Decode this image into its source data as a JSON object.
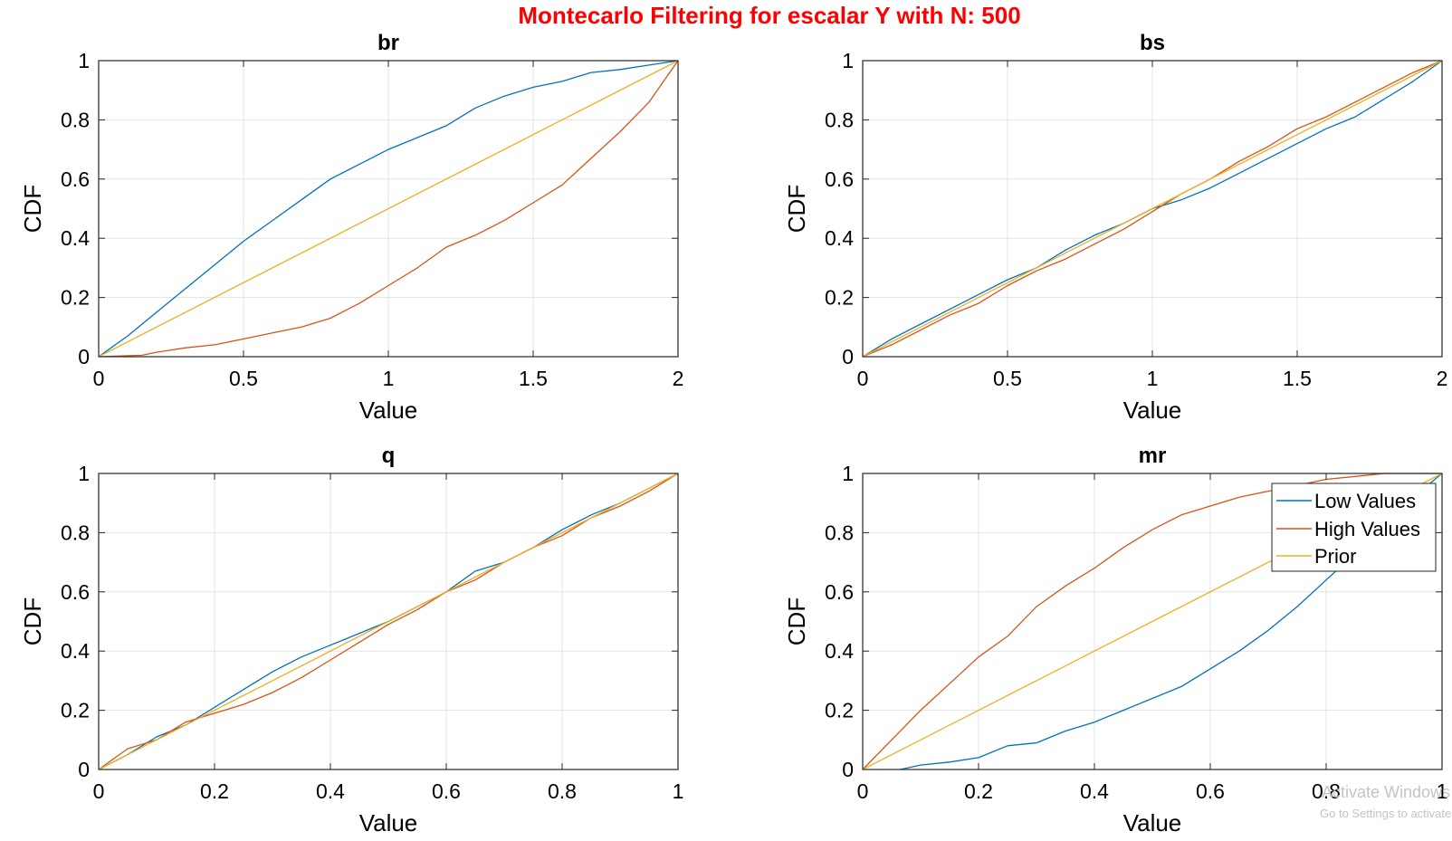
{
  "figure": {
    "title": "Montecarlo Filtering for escalar Y with N: 500",
    "title_color": "#ff0000"
  },
  "colors": {
    "low": "#0072bd",
    "high": "#d95319",
    "prior": "#edb120",
    "grid": "#e3e3e3"
  },
  "legend": {
    "entries": [
      "Low Values",
      "High Values",
      "Prior"
    ],
    "placement": "top-right of mr panel"
  },
  "watermark": {
    "line1": "Activate Windows",
    "line2": "Go to Settings to activate Windows."
  },
  "chart_data": [
    {
      "type": "line",
      "title": "br",
      "xlabel": "Value",
      "ylabel": "CDF",
      "xlim": [
        0,
        2
      ],
      "ylim": [
        0,
        1
      ],
      "xticks": [
        0,
        0.5,
        1,
        1.5,
        2
      ],
      "xticklabels": [
        "0",
        "0.5",
        "1",
        "1.5",
        "2"
      ],
      "yticks": [
        0,
        0.2,
        0.4,
        0.6,
        0.8,
        1
      ],
      "yticklabels": [
        "0",
        "0.2",
        "0.4",
        "0.6",
        "0.8",
        "1"
      ],
      "grid": true,
      "series": [
        {
          "name": "Low Values",
          "x": [
            0,
            0.1,
            0.2,
            0.3,
            0.4,
            0.5,
            0.6,
            0.7,
            0.8,
            0.9,
            1.0,
            1.1,
            1.2,
            1.3,
            1.4,
            1.5,
            1.6,
            1.7,
            1.8,
            1.9,
            2.0
          ],
          "y": [
            0,
            0.07,
            0.15,
            0.23,
            0.31,
            0.39,
            0.46,
            0.53,
            0.6,
            0.65,
            0.7,
            0.74,
            0.78,
            0.84,
            0.88,
            0.91,
            0.93,
            0.96,
            0.97,
            0.985,
            1.0
          ]
        },
        {
          "name": "High Values",
          "x": [
            0,
            0.15,
            0.2,
            0.3,
            0.4,
            0.5,
            0.6,
            0.7,
            0.8,
            0.9,
            1.0,
            1.1,
            1.2,
            1.3,
            1.4,
            1.5,
            1.6,
            1.7,
            1.8,
            1.9,
            2.0
          ],
          "y": [
            0,
            0.005,
            0.015,
            0.03,
            0.04,
            0.06,
            0.08,
            0.1,
            0.13,
            0.18,
            0.24,
            0.3,
            0.37,
            0.41,
            0.46,
            0.52,
            0.58,
            0.67,
            0.76,
            0.86,
            1.0
          ]
        },
        {
          "name": "Prior",
          "x": [
            0,
            2
          ],
          "y": [
            0,
            1
          ]
        }
      ]
    },
    {
      "type": "line",
      "title": "bs",
      "xlabel": "Value",
      "ylabel": "CDF",
      "xlim": [
        0,
        2
      ],
      "ylim": [
        0,
        1
      ],
      "xticks": [
        0,
        0.5,
        1,
        1.5,
        2
      ],
      "xticklabels": [
        "0",
        "0.5",
        "1",
        "1.5",
        "2"
      ],
      "yticks": [
        0,
        0.2,
        0.4,
        0.6,
        0.8,
        1
      ],
      "yticklabels": [
        "0",
        "0.2",
        "0.4",
        "0.6",
        "0.8",
        "1"
      ],
      "grid": true,
      "series": [
        {
          "name": "Low Values",
          "x": [
            0,
            0.1,
            0.2,
            0.3,
            0.4,
            0.5,
            0.6,
            0.7,
            0.8,
            0.9,
            1.0,
            1.1,
            1.2,
            1.3,
            1.4,
            1.5,
            1.6,
            1.7,
            1.8,
            1.9,
            2.0
          ],
          "y": [
            0,
            0.06,
            0.11,
            0.16,
            0.21,
            0.26,
            0.3,
            0.36,
            0.41,
            0.45,
            0.5,
            0.53,
            0.57,
            0.62,
            0.67,
            0.72,
            0.77,
            0.81,
            0.87,
            0.93,
            1.0
          ]
        },
        {
          "name": "High Values",
          "x": [
            0,
            0.1,
            0.2,
            0.3,
            0.4,
            0.5,
            0.6,
            0.7,
            0.8,
            0.9,
            1.0,
            1.1,
            1.2,
            1.3,
            1.4,
            1.5,
            1.6,
            1.7,
            1.8,
            1.9,
            2.0
          ],
          "y": [
            0,
            0.04,
            0.09,
            0.14,
            0.18,
            0.24,
            0.29,
            0.33,
            0.38,
            0.43,
            0.49,
            0.55,
            0.6,
            0.66,
            0.71,
            0.77,
            0.81,
            0.86,
            0.91,
            0.96,
            1.0
          ]
        },
        {
          "name": "Prior",
          "x": [
            0,
            2
          ],
          "y": [
            0,
            1
          ]
        }
      ]
    },
    {
      "type": "line",
      "title": "q",
      "xlabel": "Value",
      "ylabel": "CDF",
      "xlim": [
        0,
        1
      ],
      "ylim": [
        0,
        1
      ],
      "xticks": [
        0,
        0.2,
        0.4,
        0.6,
        0.8,
        1
      ],
      "xticklabels": [
        "0",
        "0.2",
        "0.4",
        "0.6",
        "0.8",
        "1"
      ],
      "yticks": [
        0,
        0.2,
        0.4,
        0.6,
        0.8,
        1
      ],
      "yticklabels": [
        "0",
        "0.2",
        "0.4",
        "0.6",
        "0.8",
        "1"
      ],
      "grid": true,
      "series": [
        {
          "name": "Low Values",
          "x": [
            0,
            0.05,
            0.1,
            0.15,
            0.2,
            0.25,
            0.3,
            0.35,
            0.4,
            0.45,
            0.5,
            0.55,
            0.6,
            0.65,
            0.7,
            0.75,
            0.8,
            0.85,
            0.9,
            0.95,
            1.0
          ],
          "y": [
            0,
            0.05,
            0.11,
            0.15,
            0.21,
            0.27,
            0.33,
            0.38,
            0.42,
            0.46,
            0.5,
            0.55,
            0.6,
            0.67,
            0.7,
            0.75,
            0.81,
            0.86,
            0.9,
            0.95,
            1.0
          ]
        },
        {
          "name": "High Values",
          "x": [
            0,
            0.05,
            0.1,
            0.15,
            0.2,
            0.25,
            0.3,
            0.35,
            0.4,
            0.45,
            0.5,
            0.55,
            0.6,
            0.65,
            0.7,
            0.75,
            0.8,
            0.85,
            0.9,
            0.95,
            1.0
          ],
          "y": [
            0,
            0.07,
            0.1,
            0.16,
            0.19,
            0.22,
            0.26,
            0.31,
            0.37,
            0.43,
            0.49,
            0.54,
            0.6,
            0.64,
            0.7,
            0.75,
            0.79,
            0.85,
            0.89,
            0.94,
            1.0
          ]
        },
        {
          "name": "Prior",
          "x": [
            0,
            1
          ],
          "y": [
            0,
            1
          ]
        }
      ]
    },
    {
      "type": "line",
      "title": "mr",
      "xlabel": "Value",
      "ylabel": "CDF",
      "xlim": [
        0,
        1
      ],
      "ylim": [
        0,
        1
      ],
      "xticks": [
        0,
        0.2,
        0.4,
        0.6,
        0.8,
        1
      ],
      "xticklabels": [
        "0",
        "0.2",
        "0.4",
        "0.6",
        "0.8",
        "1"
      ],
      "yticks": [
        0,
        0.2,
        0.4,
        0.6,
        0.8,
        1
      ],
      "yticklabels": [
        "0",
        "0.2",
        "0.4",
        "0.6",
        "0.8",
        "1"
      ],
      "grid": true,
      "series": [
        {
          "name": "Low Values",
          "x": [
            0.065,
            0.1,
            0.15,
            0.2,
            0.25,
            0.3,
            0.35,
            0.4,
            0.45,
            0.5,
            0.55,
            0.6,
            0.65,
            0.7,
            0.75,
            0.8,
            0.85,
            0.9,
            0.95,
            1.0
          ],
          "y": [
            0,
            0.015,
            0.025,
            0.04,
            0.08,
            0.09,
            0.13,
            0.16,
            0.2,
            0.24,
            0.28,
            0.34,
            0.4,
            0.47,
            0.55,
            0.64,
            0.73,
            0.83,
            0.92,
            1.0
          ]
        },
        {
          "name": "High Values",
          "x": [
            0,
            0.05,
            0.1,
            0.15,
            0.2,
            0.25,
            0.3,
            0.35,
            0.4,
            0.45,
            0.5,
            0.55,
            0.6,
            0.65,
            0.7,
            0.75,
            0.8,
            0.85,
            0.9,
            0.95,
            1.0
          ],
          "y": [
            0,
            0.1,
            0.2,
            0.29,
            0.38,
            0.45,
            0.55,
            0.62,
            0.68,
            0.75,
            0.81,
            0.86,
            0.89,
            0.92,
            0.94,
            0.96,
            0.98,
            0.99,
            1.0,
            1.0,
            1.0
          ]
        },
        {
          "name": "Prior",
          "x": [
            0,
            1
          ],
          "y": [
            0,
            1
          ]
        }
      ]
    }
  ]
}
